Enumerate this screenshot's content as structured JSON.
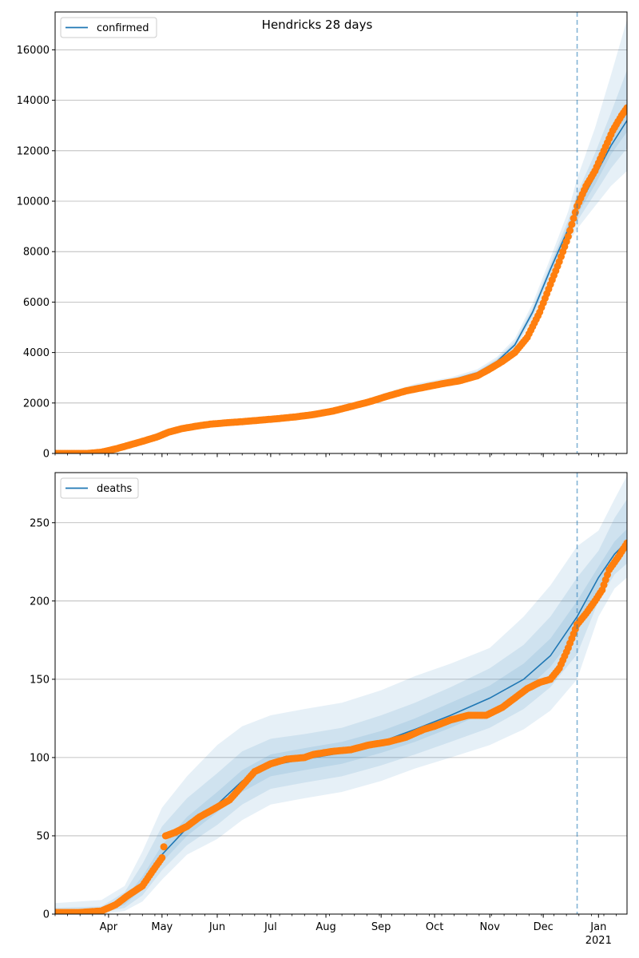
{
  "chart_data": [
    {
      "type": "line",
      "title": "Hendricks 28 days",
      "legend": "confirmed",
      "legend_position": "top-left",
      "grid": "horizontal",
      "x_tick_labels": [
        "Apr",
        "May",
        "Jun",
        "Jul",
        "Aug",
        "Sep",
        "Oct",
        "Nov",
        "Dec",
        "Jan"
      ],
      "x_year_label": "2021",
      "ylim": [
        0,
        17500
      ],
      "y_ticks": [
        0,
        2000,
        4000,
        6000,
        8000,
        10000,
        12000,
        14000,
        16000
      ],
      "xlim": [
        "2020-03-02",
        "2021-01-17"
      ],
      "forecast_start": "2020-12-20",
      "colors": {
        "line": "#1f77b4",
        "points": "#ff7f0e",
        "band": "#1f77b4",
        "vline": "#1f77b4"
      },
      "model": {
        "x": [
          "2020-03-02",
          "2020-03-25",
          "2020-04-10",
          "2020-05-01",
          "2020-05-20",
          "2020-06-10",
          "2020-07-01",
          "2020-07-20",
          "2020-08-10",
          "2020-09-01",
          "2020-09-20",
          "2020-10-10",
          "2020-10-25",
          "2020-11-05",
          "2020-11-15",
          "2020-11-25",
          "2020-12-05",
          "2020-12-15",
          "2020-12-20",
          "2020-12-30",
          "2021-01-08",
          "2021-01-17"
        ],
        "y": [
          0,
          40,
          250,
          800,
          1100,
          1250,
          1350,
          1480,
          1750,
          2250,
          2650,
          2900,
          3200,
          3650,
          4300,
          5600,
          7300,
          8900,
          9700,
          11000,
          12200,
          13200
        ],
        "bands": [
          {
            "lower": [
              0,
              20,
              200,
              720,
              1040,
              1190,
              1300,
              1430,
              1700,
              2180,
              2560,
              2800,
              3080,
              3500,
              4100,
              5300,
              6900,
              8300,
              8900,
              9800,
              10600,
              11200
            ],
            "upper": [
              50,
              80,
              310,
              900,
              1180,
              1320,
              1420,
              1560,
              1830,
              2350,
              2760,
              3020,
              3340,
              3830,
              4550,
              5950,
              7750,
              9600,
              10900,
              12900,
              15000,
              17200
            ]
          },
          {
            "lower": [
              0,
              28,
              220,
              750,
              1060,
              1210,
              1320,
              1450,
              1720,
              2210,
              2600,
              2850,
              3130,
              3560,
              4180,
              5420,
              7080,
              8550,
              9200,
              10300,
              11300,
              12100
            ],
            "upper": [
              40,
              65,
              285,
              860,
              1150,
              1290,
              1390,
              1520,
              1800,
              2300,
              2710,
              2960,
              3270,
              3750,
              4440,
              5780,
              7520,
              9250,
              10300,
              11900,
              13500,
              15200
            ]
          },
          {
            "lower": [
              0,
              34,
              235,
              775,
              1080,
              1230,
              1335,
              1465,
              1735,
              2230,
              2625,
              2875,
              3165,
              3605,
              4240,
              5510,
              7190,
              8720,
              9450,
              10650,
              11850,
              12750
            ],
            "upper": [
              20,
              50,
              265,
              825,
              1120,
              1270,
              1370,
              1500,
              1770,
              2275,
              2680,
              2930,
              3240,
              3700,
              4370,
              5700,
              7420,
              9100,
              10000,
              11400,
              12750,
              13900
            ]
          }
        ]
      },
      "observed": {
        "x": [
          "2020-03-02",
          "2020-03-10",
          "2020-03-20",
          "2020-03-28",
          "2020-04-05",
          "2020-04-12",
          "2020-04-20",
          "2020-04-28",
          "2020-05-05",
          "2020-05-12",
          "2020-05-20",
          "2020-05-28",
          "2020-06-05",
          "2020-06-15",
          "2020-06-25",
          "2020-07-05",
          "2020-07-15",
          "2020-07-25",
          "2020-08-05",
          "2020-08-15",
          "2020-08-25",
          "2020-09-05",
          "2020-09-15",
          "2020-09-25",
          "2020-10-05",
          "2020-10-15",
          "2020-10-25",
          "2020-11-01",
          "2020-11-08",
          "2020-11-15",
          "2020-11-22",
          "2020-11-29",
          "2020-12-05",
          "2020-12-10",
          "2020-12-15",
          "2020-12-20",
          "2020-12-25",
          "2020-12-30",
          "2021-01-04",
          "2021-01-09",
          "2021-01-14",
          "2021-01-17"
        ],
        "y": [
          0,
          0,
          0,
          50,
          180,
          320,
          480,
          650,
          850,
          980,
          1080,
          1160,
          1210,
          1260,
          1320,
          1380,
          1450,
          1540,
          1680,
          1860,
          2040,
          2280,
          2480,
          2620,
          2760,
          2880,
          3080,
          3350,
          3650,
          4000,
          4600,
          5600,
          6700,
          7600,
          8600,
          9800,
          10600,
          11200,
          12000,
          12800,
          13400,
          13700
        ]
      }
    },
    {
      "type": "line",
      "title": "",
      "legend": "deaths",
      "legend_position": "top-left",
      "grid": "horizontal",
      "x_tick_labels": [
        "Apr",
        "May",
        "Jun",
        "Jul",
        "Aug",
        "Sep",
        "Oct",
        "Nov",
        "Dec",
        "Jan"
      ],
      "x_year_label": "2021",
      "ylim": [
        0,
        282
      ],
      "y_ticks": [
        0,
        50,
        100,
        150,
        200,
        250
      ],
      "xlim": [
        "2020-03-02",
        "2021-01-17"
      ],
      "forecast_start": "2020-12-20",
      "colors": {
        "line": "#1f77b4",
        "points": "#ff7f0e",
        "band": "#1f77b4",
        "vline": "#1f77b4"
      },
      "model": {
        "x": [
          "2020-03-02",
          "2020-03-28",
          "2020-04-10",
          "2020-04-20",
          "2020-05-01",
          "2020-05-15",
          "2020-06-01",
          "2020-06-15",
          "2020-07-01",
          "2020-07-20",
          "2020-08-10",
          "2020-09-01",
          "2020-09-20",
          "2020-10-10",
          "2020-11-01",
          "2020-11-20",
          "2020-12-05",
          "2020-12-20",
          "2021-01-01",
          "2021-01-10",
          "2021-01-17"
        ],
        "y": [
          0,
          2,
          8,
          20,
          38,
          55,
          70,
          85,
          95,
          99,
          103,
          110,
          118,
          127,
          138,
          150,
          165,
          190,
          215,
          230,
          238
        ],
        "bands": [
          {
            "lower": [
              0,
              0,
              2,
              8,
              22,
              38,
              48,
              60,
              70,
              74,
              78,
              85,
              93,
              100,
              108,
              118,
              130,
              150,
              190,
              208,
              215
            ],
            "upper": [
              7,
              9,
              18,
              40,
              68,
              88,
              108,
              120,
              127,
              131,
              135,
              143,
              152,
              160,
              170,
              190,
              210,
              235,
              245,
              265,
              280
            ]
          },
          {
            "lower": [
              0,
              1,
              4,
              12,
              28,
              44,
              57,
              70,
              80,
              84,
              88,
              95,
              102,
              110,
              119,
              131,
              145,
              166,
              200,
              217,
              224
            ],
            "upper": [
              4,
              5,
              14,
              32,
              56,
              74,
              90,
              104,
              112,
              115,
              119,
              127,
              135,
              145,
              157,
              172,
              190,
              215,
              232,
              253,
              265
            ]
          },
          {
            "lower": [
              0,
              1,
              6,
              16,
              33,
              50,
              65,
              78,
              88,
              92,
              96,
              103,
              110,
              119,
              130,
              142,
              158,
              180,
              208,
              225,
              232
            ],
            "upper": [
              2,
              3,
              10,
              24,
              44,
              62,
              78,
              92,
              102,
              106,
              110,
              117,
              125,
              135,
              146,
              160,
              176,
              200,
              222,
              238,
              246
            ]
          }
        ]
      },
      "observed": {
        "x": [
          "2020-03-02",
          "2020-03-15",
          "2020-03-28",
          "2020-04-05",
          "2020-04-12",
          "2020-04-20",
          "2020-04-26",
          "2020-05-01",
          "2020-05-03",
          "2020-05-08",
          "2020-05-15",
          "2020-05-22",
          "2020-05-30",
          "2020-06-08",
          "2020-06-15",
          "2020-06-22",
          "2020-07-01",
          "2020-07-10",
          "2020-07-20",
          "2020-07-25",
          "2020-08-05",
          "2020-08-15",
          "2020-08-25",
          "2020-09-05",
          "2020-09-15",
          "2020-09-25",
          "2020-10-01",
          "2020-10-10",
          "2020-10-20",
          "2020-10-30",
          "2020-11-08",
          "2020-11-15",
          "2020-11-22",
          "2020-11-29",
          "2020-12-05",
          "2020-12-10",
          "2020-12-15",
          "2020-12-20",
          "2020-12-25",
          "2020-12-30",
          "2021-01-03",
          "2021-01-07",
          "2021-01-12",
          "2021-01-17"
        ],
        "y": [
          1,
          1,
          2,
          6,
          12,
          18,
          28,
          36,
          50,
          52,
          56,
          62,
          67,
          73,
          82,
          91,
          96,
          99,
          100,
          102,
          104,
          105,
          108,
          110,
          113,
          118,
          120,
          124,
          127,
          127,
          132,
          138,
          144,
          148,
          150,
          157,
          170,
          185,
          192,
          200,
          207,
          220,
          228,
          237
        ]
      }
    }
  ]
}
